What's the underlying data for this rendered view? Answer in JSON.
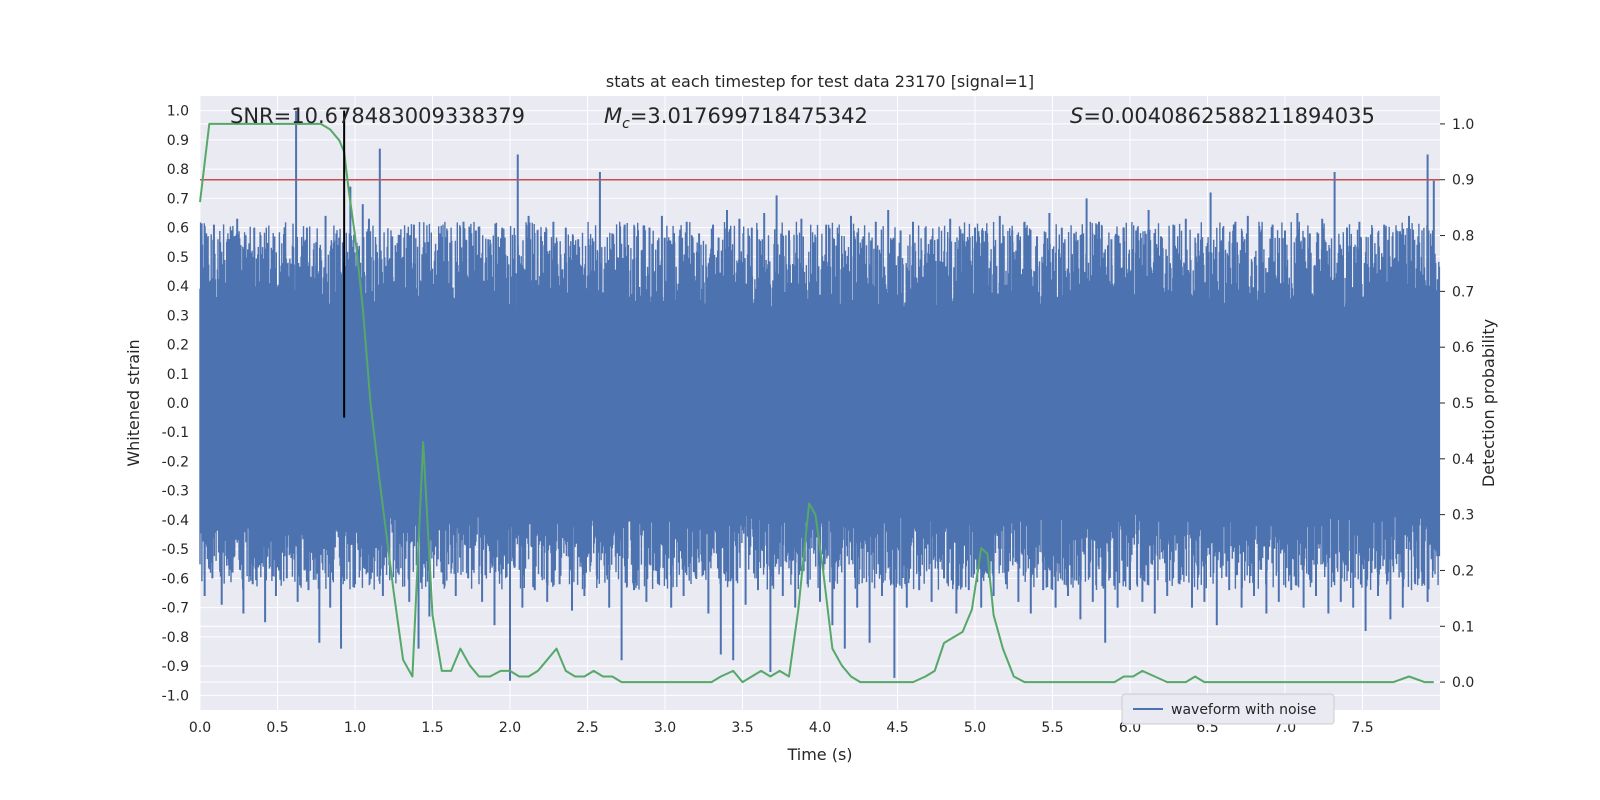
{
  "chart_data": {
    "type": "line",
    "title": "stats at each timestep for test data 23170 [signal=1]",
    "xlabel": "Time (s)",
    "ylabel": "Whitened strain",
    "ylabel_right": "Detection probability",
    "xlim": [
      0.0,
      8.0
    ],
    "ylim": [
      -1.05,
      1.05
    ],
    "ylim_right": [
      -0.05,
      1.05
    ],
    "x_ticks": [
      "0.0",
      "0.5",
      "1.0",
      "1.5",
      "2.0",
      "2.5",
      "3.0",
      "3.5",
      "4.0",
      "4.5",
      "5.0",
      "5.5",
      "6.0",
      "6.5",
      "7.0",
      "7.5"
    ],
    "y_ticks": [
      "1.0",
      "0.9",
      "0.8",
      "0.7",
      "0.6",
      "0.5",
      "0.4",
      "0.3",
      "0.2",
      "0.1",
      "0.0",
      "-0.1",
      "-0.2",
      "-0.3",
      "-0.4",
      "-0.5",
      "-0.6",
      "-0.7",
      "-0.8",
      "-0.9",
      "-1.0"
    ],
    "y_ticks_right": [
      "1.0",
      "0.9",
      "0.8",
      "0.7",
      "0.6",
      "0.5",
      "0.4",
      "0.3",
      "0.2",
      "0.1",
      "0.0"
    ],
    "annotations": {
      "snr": "SNR=10.678483009338379",
      "mc_prefix": "M",
      "mc_sub": "c",
      "mc_value": "=3.017699718475342",
      "s_prefix": "S",
      "s_value": "=0.0040862588211894035"
    },
    "legend": {
      "label": "waveform with noise",
      "placement": "lower-right"
    },
    "threshold": {
      "value": 0.9,
      "axis": "right",
      "color": "#c44e52"
    },
    "event_time": 0.93,
    "event_span_left": [
      -0.05,
      1.0
    ],
    "waveform": {
      "name": "waveform with noise",
      "color": "#4c72b0",
      "dense_band": [
        -0.38,
        0.32
      ],
      "spikes_pos": [
        [
          0.04,
          0.58
        ],
        [
          0.09,
          0.61
        ],
        [
          0.13,
          0.55
        ],
        [
          0.18,
          0.48
        ],
        [
          0.24,
          0.63
        ],
        [
          0.29,
          0.56
        ],
        [
          0.35,
          0.6
        ],
        [
          0.42,
          0.52
        ],
        [
          0.48,
          0.57
        ],
        [
          0.55,
          0.51
        ],
        [
          0.62,
          1.0
        ],
        [
          0.69,
          0.6
        ],
        [
          0.75,
          0.55
        ],
        [
          0.81,
          0.64
        ],
        [
          0.88,
          0.58
        ],
        [
          0.97,
          0.74
        ],
        [
          1.05,
          0.68
        ],
        [
          1.09,
          0.63
        ],
        [
          1.16,
          0.87
        ],
        [
          1.24,
          0.57
        ],
        [
          1.31,
          0.5
        ],
        [
          1.38,
          0.61
        ],
        [
          1.47,
          0.55
        ],
        [
          1.55,
          0.58
        ],
        [
          1.62,
          0.51
        ],
        [
          1.7,
          0.62
        ],
        [
          1.78,
          0.59
        ],
        [
          1.86,
          0.56
        ],
        [
          1.95,
          0.6
        ],
        [
          2.05,
          0.85
        ],
        [
          2.12,
          0.64
        ],
        [
          2.2,
          0.57
        ],
        [
          2.28,
          0.62
        ],
        [
          2.36,
          0.6
        ],
        [
          2.44,
          0.56
        ],
        [
          2.52,
          0.54
        ],
        [
          2.58,
          0.79
        ],
        [
          2.66,
          0.58
        ],
        [
          2.74,
          0.61
        ],
        [
          2.82,
          0.57
        ],
        [
          2.9,
          0.6
        ],
        [
          2.98,
          0.64
        ],
        [
          3.06,
          0.55
        ],
        [
          3.14,
          0.62
        ],
        [
          3.22,
          0.58
        ],
        [
          3.31,
          0.61
        ],
        [
          3.4,
          0.66
        ],
        [
          3.48,
          0.63
        ],
        [
          3.56,
          0.6
        ],
        [
          3.64,
          0.65
        ],
        [
          3.72,
          0.71
        ],
        [
          3.8,
          0.59
        ],
        [
          3.88,
          0.63
        ],
        [
          3.96,
          0.55
        ],
        [
          4.04,
          0.61
        ],
        [
          4.12,
          0.58
        ],
        [
          4.2,
          0.64
        ],
        [
          4.28,
          0.57
        ],
        [
          4.36,
          0.62
        ],
        [
          4.44,
          0.66
        ],
        [
          4.52,
          0.59
        ],
        [
          4.6,
          0.62
        ],
        [
          4.68,
          0.6
        ],
        [
          4.76,
          0.56
        ],
        [
          4.84,
          0.63
        ],
        [
          4.92,
          0.58
        ],
        [
          5.0,
          0.6
        ],
        [
          5.08,
          0.55
        ],
        [
          5.16,
          0.64
        ],
        [
          5.24,
          0.59
        ],
        [
          5.32,
          0.62
        ],
        [
          5.4,
          0.57
        ],
        [
          5.48,
          0.65
        ],
        [
          5.56,
          0.6
        ],
        [
          5.64,
          0.58
        ],
        [
          5.72,
          0.7
        ],
        [
          5.8,
          0.62
        ],
        [
          5.88,
          0.56
        ],
        [
          5.96,
          0.6
        ],
        [
          6.04,
          0.59
        ],
        [
          6.12,
          0.66
        ],
        [
          6.2,
          0.57
        ],
        [
          6.28,
          0.61
        ],
        [
          6.36,
          0.63
        ],
        [
          6.44,
          0.58
        ],
        [
          6.52,
          0.72
        ],
        [
          6.6,
          0.6
        ],
        [
          6.68,
          0.62
        ],
        [
          6.76,
          0.64
        ],
        [
          6.84,
          0.57
        ],
        [
          6.92,
          0.61
        ],
        [
          7.0,
          0.59
        ],
        [
          7.08,
          0.65
        ],
        [
          7.16,
          0.58
        ],
        [
          7.24,
          0.63
        ],
        [
          7.32,
          0.79
        ],
        [
          7.4,
          0.6
        ],
        [
          7.48,
          0.62
        ],
        [
          7.56,
          0.56
        ],
        [
          7.64,
          0.61
        ],
        [
          7.72,
          0.59
        ],
        [
          7.8,
          0.64
        ],
        [
          7.86,
          0.57
        ],
        [
          7.92,
          0.85
        ],
        [
          7.96,
          0.76
        ]
      ],
      "spikes_neg": [
        [
          0.03,
          -0.66
        ],
        [
          0.08,
          -0.6
        ],
        [
          0.14,
          -0.69
        ],
        [
          0.21,
          -0.58
        ],
        [
          0.28,
          -0.72
        ],
        [
          0.34,
          -0.62
        ],
        [
          0.42,
          -0.75
        ],
        [
          0.49,
          -0.66
        ],
        [
          0.56,
          -0.6
        ],
        [
          0.63,
          -0.68
        ],
        [
          0.7,
          -0.64
        ],
        [
          0.77,
          -0.82
        ],
        [
          0.84,
          -0.7
        ],
        [
          0.91,
          -0.84
        ],
        [
          1.0,
          -0.62
        ],
        [
          1.08,
          -0.58
        ],
        [
          1.18,
          -0.66
        ],
        [
          1.27,
          -0.55
        ],
        [
          1.35,
          -0.68
        ],
        [
          1.41,
          -0.84
        ],
        [
          1.48,
          -0.73
        ],
        [
          1.57,
          -0.62
        ],
        [
          1.65,
          -0.66
        ],
        [
          1.73,
          -0.6
        ],
        [
          1.82,
          -0.68
        ],
        [
          1.9,
          -0.76
        ],
        [
          2.0,
          -0.95
        ],
        [
          2.08,
          -0.7
        ],
        [
          2.16,
          -0.64
        ],
        [
          2.24,
          -0.68
        ],
        [
          2.32,
          -0.62
        ],
        [
          2.4,
          -0.71
        ],
        [
          2.48,
          -0.66
        ],
        [
          2.56,
          -0.59
        ],
        [
          2.64,
          -0.7
        ],
        [
          2.72,
          -0.88
        ],
        [
          2.8,
          -0.64
        ],
        [
          2.88,
          -0.68
        ],
        [
          2.96,
          -0.62
        ],
        [
          3.04,
          -0.7
        ],
        [
          3.12,
          -0.66
        ],
        [
          3.2,
          -0.6
        ],
        [
          3.28,
          -0.72
        ],
        [
          3.36,
          -0.86
        ],
        [
          3.44,
          -0.88
        ],
        [
          3.52,
          -0.69
        ],
        [
          3.6,
          -0.64
        ],
        [
          3.68,
          -0.92
        ],
        [
          3.76,
          -0.66
        ],
        [
          3.84,
          -0.7
        ],
        [
          3.92,
          -0.62
        ],
        [
          4.0,
          -0.68
        ],
        [
          4.08,
          -0.76
        ],
        [
          4.16,
          -0.84
        ],
        [
          4.24,
          -0.7
        ],
        [
          4.32,
          -0.82
        ],
        [
          4.4,
          -0.66
        ],
        [
          4.48,
          -0.94
        ],
        [
          4.56,
          -0.7
        ],
        [
          4.64,
          -0.64
        ],
        [
          4.72,
          -0.68
        ],
        [
          4.8,
          -0.6
        ],
        [
          4.88,
          -0.72
        ],
        [
          4.96,
          -0.64
        ],
        [
          5.04,
          -0.7
        ],
        [
          5.12,
          -0.66
        ],
        [
          5.2,
          -0.62
        ],
        [
          5.28,
          -0.68
        ],
        [
          5.36,
          -0.72
        ],
        [
          5.44,
          -0.64
        ],
        [
          5.52,
          -0.7
        ],
        [
          5.6,
          -0.66
        ],
        [
          5.68,
          -0.74
        ],
        [
          5.76,
          -0.68
        ],
        [
          5.84,
          -0.82
        ],
        [
          5.92,
          -0.7
        ],
        [
          6.0,
          -0.64
        ],
        [
          6.08,
          -0.68
        ],
        [
          6.16,
          -0.72
        ],
        [
          6.24,
          -0.66
        ],
        [
          6.32,
          -0.62
        ],
        [
          6.4,
          -0.7
        ],
        [
          6.48,
          -0.68
        ],
        [
          6.56,
          -0.76
        ],
        [
          6.64,
          -0.64
        ],
        [
          6.72,
          -0.7
        ],
        [
          6.8,
          -0.66
        ],
        [
          6.88,
          -0.72
        ],
        [
          6.96,
          -0.68
        ],
        [
          7.04,
          -0.64
        ],
        [
          7.12,
          -0.7
        ],
        [
          7.2,
          -0.66
        ],
        [
          7.28,
          -0.72
        ],
        [
          7.36,
          -0.68
        ],
        [
          7.44,
          -0.7
        ],
        [
          7.52,
          -0.78
        ],
        [
          7.6,
          -0.66
        ],
        [
          7.68,
          -0.74
        ],
        [
          7.76,
          -0.7
        ],
        [
          7.84,
          -0.62
        ],
        [
          7.92,
          -0.68
        ]
      ]
    },
    "probability": {
      "name": "detection probability",
      "color": "#55a868",
      "x": [
        0.0,
        0.06,
        0.12,
        0.18,
        0.24,
        0.3,
        0.36,
        0.42,
        0.48,
        0.54,
        0.6,
        0.66,
        0.72,
        0.78,
        0.84,
        0.9,
        0.93,
        0.96,
        1.0,
        1.05,
        1.1,
        1.15,
        1.2,
        1.25,
        1.31,
        1.37,
        1.44,
        1.5,
        1.56,
        1.62,
        1.68,
        1.74,
        1.8,
        1.87,
        1.94,
        2.0,
        2.06,
        2.12,
        2.18,
        2.24,
        2.3,
        2.36,
        2.42,
        2.48,
        2.54,
        2.6,
        2.66,
        2.72,
        2.8,
        2.9,
        3.0,
        3.1,
        3.2,
        3.3,
        3.36,
        3.44,
        3.5,
        3.56,
        3.62,
        3.68,
        3.74,
        3.8,
        3.86,
        3.93,
        3.97,
        4.02,
        4.08,
        4.14,
        4.2,
        4.26,
        4.32,
        4.4,
        4.5,
        4.6,
        4.68,
        4.74,
        4.8,
        4.86,
        4.92,
        4.98,
        5.04,
        5.08,
        5.12,
        5.18,
        5.25,
        5.32,
        5.4,
        5.5,
        5.6,
        5.7,
        5.8,
        5.9,
        5.96,
        6.02,
        6.08,
        6.16,
        6.24,
        6.3,
        6.36,
        6.42,
        6.48,
        6.56,
        6.64,
        6.72,
        6.8,
        6.9,
        7.0,
        7.1,
        7.2,
        7.3,
        7.4,
        7.5,
        7.6,
        7.7,
        7.8,
        7.9,
        7.96
      ],
      "y": [
        0.86,
        1.0,
        1.0,
        1.0,
        1.0,
        1.0,
        1.0,
        1.0,
        1.0,
        1.0,
        1.0,
        1.0,
        1.0,
        1.0,
        0.99,
        0.97,
        0.95,
        0.88,
        0.8,
        0.67,
        0.5,
        0.38,
        0.27,
        0.16,
        0.04,
        0.01,
        0.43,
        0.12,
        0.02,
        0.02,
        0.06,
        0.03,
        0.01,
        0.01,
        0.02,
        0.02,
        0.01,
        0.01,
        0.02,
        0.04,
        0.06,
        0.02,
        0.01,
        0.01,
        0.02,
        0.01,
        0.01,
        0.0,
        0.0,
        0.0,
        0.0,
        0.0,
        0.0,
        0.0,
        0.01,
        0.02,
        0.0,
        0.01,
        0.02,
        0.01,
        0.02,
        0.01,
        0.13,
        0.32,
        0.3,
        0.2,
        0.06,
        0.03,
        0.01,
        0.0,
        0.0,
        0.0,
        0.0,
        0.0,
        0.01,
        0.02,
        0.07,
        0.08,
        0.09,
        0.13,
        0.24,
        0.23,
        0.12,
        0.06,
        0.01,
        0.0,
        0.0,
        0.0,
        0.0,
        0.0,
        0.0,
        0.0,
        0.01,
        0.01,
        0.02,
        0.01,
        0.0,
        0.0,
        0.0,
        0.01,
        0.0,
        0.0,
        0.0,
        0.0,
        0.0,
        0.0,
        0.0,
        0.0,
        0.0,
        0.0,
        0.0,
        0.0,
        0.0,
        0.0,
        0.01,
        0.0,
        0.0
      ]
    }
  }
}
